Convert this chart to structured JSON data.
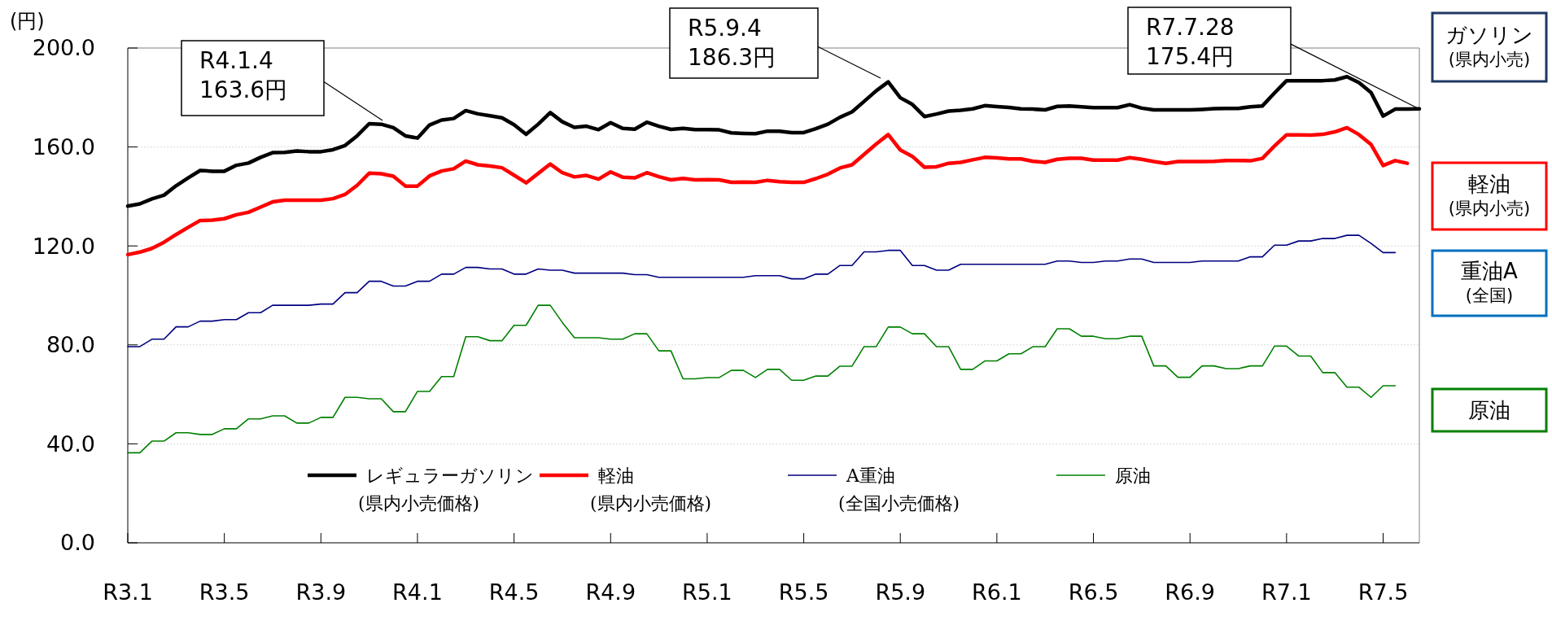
{
  "chart_data": {
    "type": "line",
    "ylabel": "(円)",
    "ylim": [
      0,
      200
    ],
    "categories": [
      "R3.1",
      null,
      null,
      null,
      null,
      null,
      null,
      null,
      "R3.5",
      null,
      null,
      null,
      null,
      null,
      null,
      null,
      "R3.9",
      null,
      null,
      null,
      null,
      null,
      null,
      null,
      "R4.1",
      null,
      null,
      null,
      null,
      null,
      null,
      null,
      "R4.5",
      null,
      null,
      null,
      null,
      null,
      null,
      null,
      "R4.9",
      null,
      null,
      null,
      null,
      null,
      null,
      null,
      "R5.1",
      null,
      null,
      null,
      null,
      null,
      null,
      null,
      "R5.5",
      null,
      null,
      null,
      null,
      null,
      null,
      null,
      "R5.9",
      null,
      null,
      null,
      null,
      null,
      null,
      null,
      "R6.1",
      null,
      null,
      null,
      null,
      null,
      null,
      null,
      "R6.5",
      null,
      null,
      null,
      null,
      null,
      null,
      null,
      "R6.9",
      null,
      null,
      null,
      null,
      null,
      null,
      null,
      "R7.1",
      null,
      null,
      null,
      null,
      null,
      null,
      null,
      "R7.5",
      null,
      null,
      null
    ],
    "yticks": [
      {
        "value": 0,
        "label": "0.0"
      },
      {
        "value": 40,
        "label": "40.0"
      },
      {
        "value": 80,
        "label": "80.0"
      },
      {
        "value": 120,
        "label": "120.0"
      },
      {
        "value": 160,
        "label": "160.0"
      },
      {
        "value": 200,
        "label": "200.0"
      }
    ],
    "grid": "y",
    "legend": "bottom",
    "line_style": "solid",
    "series": [
      {
        "name": "レギュラーガソリン\n(県内小売価格)",
        "color": "#000000",
        "values": [
          136.1,
          137,
          139,
          140.5,
          144.3,
          147.5,
          150.5,
          150.2,
          150.2,
          152.6,
          153.5,
          155.8,
          157.7,
          157.8,
          158.4,
          158.1,
          158.1,
          158.9,
          160.6,
          164.5,
          169.4,
          169.2,
          167.8,
          164.5,
          163.6,
          168.9,
          170.9,
          171.5,
          174.7,
          173.4,
          172.6,
          171.8,
          169,
          165.1,
          169.2,
          173.9,
          170.2,
          167.9,
          168.4,
          167,
          169.8,
          167.5,
          167.2,
          170,
          168.4,
          167.1,
          167.5,
          167,
          167,
          166.9,
          165.7,
          165.5,
          165.4,
          166.4,
          166.4,
          165.8,
          165.8,
          167.4,
          169.2,
          172,
          174.2,
          178.4,
          182.7,
          186.3,
          179.9,
          177.2,
          172.3,
          173.3,
          174.5,
          174.8,
          175.4,
          176.7,
          176.3,
          176,
          175.4,
          175.3,
          175,
          176.4,
          176.6,
          176.2,
          175.9,
          175.9,
          175.9,
          177.1,
          175.7,
          175,
          175,
          175,
          175,
          175.2,
          175.5,
          175.6,
          175.6,
          176.2,
          176.6,
          181.8,
          186.8,
          186.8,
          186.8,
          186.8,
          187.1,
          188.4,
          186,
          182,
          172.5,
          175.3,
          175.3,
          175.4
        ]
      },
      {
        "name": "軽油\n(県内小売価格)",
        "color": "#ff0000",
        "values": [
          116.5,
          117.5,
          119,
          121.5,
          124.6,
          127.5,
          130.3,
          130.4,
          131,
          132.6,
          133.6,
          135.7,
          137.8,
          138.5,
          138.5,
          138.5,
          138.5,
          139.1,
          140.8,
          144.5,
          149.4,
          149.2,
          148.2,
          144.2,
          144.2,
          148.3,
          150.3,
          151.2,
          154.3,
          152.8,
          152.3,
          151.6,
          148.6,
          145.5,
          149.3,
          153.1,
          149.6,
          147.9,
          148.5,
          147,
          149.9,
          147.8,
          147.5,
          149.6,
          148,
          146.7,
          147.3,
          146.7,
          146.8,
          146.7,
          145.7,
          145.8,
          145.7,
          146.5,
          146,
          145.7,
          145.7,
          147.2,
          149,
          151.5,
          152.8,
          157,
          161.2,
          165,
          158.8,
          156.2,
          151.8,
          152,
          153.4,
          153.8,
          154.8,
          155.8,
          155.6,
          155.2,
          155.2,
          154.2,
          153.8,
          155,
          155.4,
          155.4,
          154.7,
          154.7,
          154.7,
          155.7,
          155,
          154.1,
          153.4,
          154.1,
          154.1,
          154.1,
          154.2,
          154.5,
          154.5,
          154.4,
          155.4,
          160.4,
          164.9,
          164.9,
          164.8,
          165.1,
          166.1,
          167.8,
          165,
          161,
          152.5,
          154.5,
          153.4,
          null
        ]
      },
      {
        "name": "A重油\n(全国小売価格)",
        "color": "#000080",
        "values": [
          79.3,
          79.3,
          82.3,
          82.3,
          87.3,
          87.3,
          89.6,
          89.6,
          90.2,
          90.2,
          93,
          93,
          96,
          96,
          96,
          96,
          96.5,
          96.5,
          101.1,
          101.1,
          105.7,
          105.7,
          103.8,
          103.8,
          105.7,
          105.7,
          108.6,
          108.6,
          111.3,
          111.3,
          110.7,
          110.7,
          108.6,
          108.6,
          110.7,
          110.2,
          110.2,
          109,
          109,
          109,
          109,
          109,
          108.4,
          108.4,
          107.3,
          107.3,
          107.3,
          107.3,
          107.3,
          107.3,
          107.3,
          107.3,
          108,
          108,
          108,
          106.7,
          106.7,
          108.6,
          108.6,
          112.1,
          112.1,
          117.6,
          117.6,
          118.2,
          118.2,
          112.1,
          112.1,
          110.2,
          110.2,
          112.6,
          112.6,
          112.6,
          112.6,
          112.6,
          112.6,
          112.6,
          112.6,
          113.9,
          113.9,
          113.3,
          113.3,
          113.9,
          113.9,
          114.7,
          114.7,
          113.3,
          113.3,
          113.3,
          113.3,
          113.9,
          113.9,
          113.9,
          113.9,
          115.6,
          115.6,
          120.3,
          120.3,
          122,
          122,
          123,
          123,
          124.3,
          124.3,
          121,
          117.3,
          117.3,
          null,
          null
        ]
      },
      {
        "name": "原油",
        "color": "#008000",
        "values": [
          36.4,
          36.4,
          41.1,
          41.1,
          44.5,
          44.5,
          43.8,
          43.8,
          46.1,
          46.1,
          50.1,
          50.1,
          51.3,
          51.3,
          48.4,
          48.4,
          50.7,
          50.7,
          58.8,
          58.8,
          58.2,
          58.2,
          53,
          53,
          61.2,
          61.2,
          67.2,
          67.2,
          83.3,
          83.3,
          81.7,
          81.7,
          87.9,
          87.9,
          96,
          96,
          89.1,
          82.9,
          82.9,
          82.9,
          82.3,
          82.3,
          84.5,
          84.5,
          77.6,
          77.6,
          66.3,
          66.3,
          66.8,
          66.8,
          69.7,
          69.7,
          66.8,
          70.1,
          70.1,
          65.7,
          65.7,
          67.4,
          67.4,
          71.4,
          71.4,
          79.3,
          79.3,
          87.2,
          87.2,
          84.5,
          84.5,
          79.3,
          79.3,
          70.1,
          70.1,
          73.5,
          73.5,
          76.4,
          76.4,
          79.3,
          79.3,
          86.5,
          86.5,
          83.5,
          83.5,
          82.5,
          82.5,
          83.5,
          83.5,
          71.5,
          71.5,
          66.9,
          66.9,
          71.5,
          71.5,
          70.4,
          70.4,
          71.5,
          71.5,
          79.5,
          79.5,
          75.5,
          75.5,
          68.8,
          68.8,
          62.9,
          62.9,
          58.8,
          63.5,
          63.5,
          null,
          null
        ]
      }
    ],
    "annotations": [
      "R4.1.4\n163.6円",
      "R5.9.4\n186.3円",
      "R7.7.28\n175.4円",
      "ガソリン\n(県内小売)",
      "軽油\n(県内小売)",
      "重油A\n(全国)",
      "原油"
    ]
  }
}
